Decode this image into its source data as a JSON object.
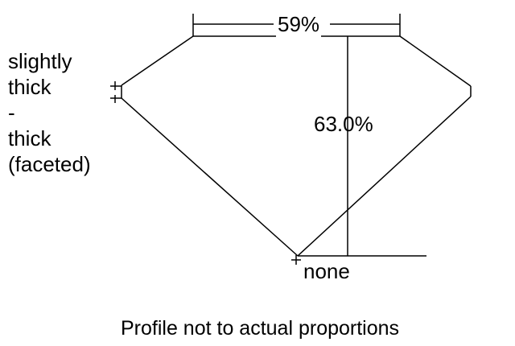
{
  "table_percent": "59%",
  "depth_percent": "63.0%",
  "girdle_label": [
    "slightly",
    "thick",
    "-",
    "thick",
    "(faceted)"
  ],
  "culet_label": "none",
  "footnote": "Profile not to actual proportions"
}
